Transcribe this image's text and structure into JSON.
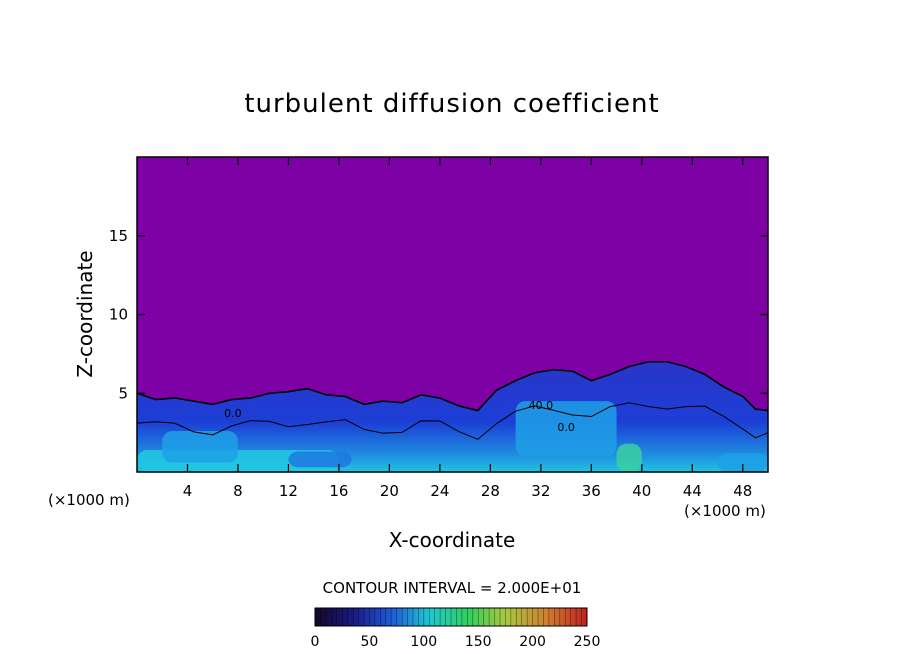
{
  "chart_data": {
    "type": "heatmap",
    "title": "turbulent diffusion coefficient",
    "xlabel": "X-coordinate",
    "ylabel": "Z-coordinate",
    "x_unit_label": "(×1000 m)",
    "y_unit_label": "(×1000 m)",
    "xlim": [
      0,
      50
    ],
    "ylim": [
      0,
      20
    ],
    "x_ticks": [
      4,
      8,
      12,
      16,
      20,
      24,
      28,
      32,
      36,
      40,
      44,
      48
    ],
    "y_ticks": [
      5,
      10,
      15
    ],
    "contour_interval_label": "CONTOUR INTERVAL = 2.000E+01",
    "contour_interval": 20,
    "contour_labels": [
      {
        "x": 7.6,
        "z": 3.5,
        "text": "0.0"
      },
      {
        "x": 32.0,
        "z": 4.0,
        "text": "40.0"
      },
      {
        "x": 34.0,
        "z": 2.6,
        "text": "0.0"
      }
    ],
    "colorbar": {
      "min": 0,
      "max": 250,
      "ticks": [
        0,
        50,
        100,
        150,
        200,
        250
      ],
      "colors": [
        "#1a0a2e",
        "#1a1a80",
        "#1e5ad8",
        "#1ec8d0",
        "#30d060",
        "#a8c840",
        "#d08030",
        "#c02020"
      ]
    },
    "background_value": 0,
    "background_color": "#7e01a6",
    "boundary_layer_profile": [
      [
        0,
        5.0
      ],
      [
        1.5,
        4.6
      ],
      [
        3,
        4.7
      ],
      [
        4.5,
        4.5
      ],
      [
        6,
        4.3
      ],
      [
        7.5,
        4.6
      ],
      [
        9,
        4.7
      ],
      [
        10.5,
        5.0
      ],
      [
        12,
        5.1
      ],
      [
        13.5,
        5.3
      ],
      [
        15,
        4.9
      ],
      [
        16.5,
        4.8
      ],
      [
        18,
        4.3
      ],
      [
        19.5,
        4.5
      ],
      [
        21,
        4.4
      ],
      [
        22.5,
        4.9
      ],
      [
        24,
        4.7
      ],
      [
        25.5,
        4.2
      ],
      [
        27,
        3.9
      ],
      [
        28.5,
        5.2
      ],
      [
        30,
        5.8
      ],
      [
        31.5,
        6.3
      ],
      [
        33,
        6.5
      ],
      [
        34.5,
        6.4
      ],
      [
        36,
        5.8
      ],
      [
        37.5,
        6.2
      ],
      [
        39,
        6.7
      ],
      [
        40.5,
        7.0
      ],
      [
        42,
        7.0
      ],
      [
        43.5,
        6.7
      ],
      [
        45,
        6.2
      ],
      [
        46.5,
        5.4
      ],
      [
        48,
        4.8
      ],
      [
        49,
        4.0
      ],
      [
        50,
        3.9
      ]
    ],
    "strong_mixing_regions": [
      {
        "x": [
          0,
          16
        ],
        "z": [
          0,
          1.4
        ],
        "level": 0.65
      },
      {
        "x": [
          2,
          8
        ],
        "z": [
          0.6,
          2.6
        ],
        "level": 0.55
      },
      {
        "x": [
          12,
          17
        ],
        "z": [
          0.3,
          1.3
        ],
        "level": 0.5
      },
      {
        "x": [
          30,
          38
        ],
        "z": [
          1.0,
          4.5
        ],
        "level": 0.55
      },
      {
        "x": [
          38,
          40
        ],
        "z": [
          0,
          1.8
        ],
        "level": 0.75
      },
      {
        "x": [
          46,
          50
        ],
        "z": [
          0,
          1.2
        ],
        "level": 0.6
      }
    ]
  }
}
